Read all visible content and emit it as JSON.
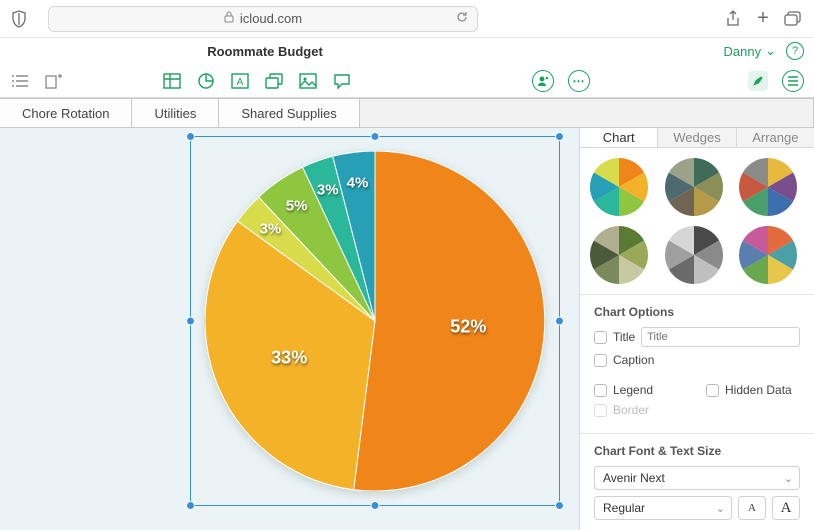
{
  "browser": {
    "url": "icloud.com"
  },
  "doc": {
    "title": "Roommate Budget",
    "user": "Danny"
  },
  "sheets": [
    "Chore Rotation",
    "Utilities",
    "Shared Supplies"
  ],
  "inspector": {
    "tabs": [
      "Chart",
      "Wedges",
      "Arrange"
    ],
    "active": 0,
    "options_title": "Chart Options",
    "title_label": "Title",
    "title_placeholder": "Title",
    "caption_label": "Caption",
    "legend_label": "Legend",
    "hidden_label": "Hidden Data",
    "border_label": "Border",
    "font_title": "Chart Font & Text Size",
    "font_family": "Avenir Next",
    "font_weight": "Regular"
  },
  "pie": {
    "type": "pie",
    "radius": 170,
    "background": "#eaf4f6",
    "slices": [
      {
        "label": "52%",
        "value": 52,
        "color": "#f08519"
      },
      {
        "label": "33%",
        "value": 33,
        "color": "#f3b228"
      },
      {
        "label": "3%",
        "value": 3,
        "color": "#d9dc4a"
      },
      {
        "label": "5%",
        "value": 5,
        "color": "#8ec63f"
      },
      {
        "label": "3%",
        "value": 3,
        "color": "#2bb89a"
      },
      {
        "label": "4%",
        "value": 4,
        "color": "#27a0b5"
      }
    ],
    "label_color": "#ffffff",
    "label_fontsize": 18
  },
  "style_minis": [
    [
      "#f08519",
      "#f3b228",
      "#8ec63f",
      "#2bb89a",
      "#27a0b5",
      "#d9dc4a"
    ],
    [
      "#3f6b57",
      "#8a8f58",
      "#b59a4a",
      "#6f6552",
      "#4e6a6f",
      "#9aa28a"
    ],
    [
      "#e7b93c",
      "#7a4e8e",
      "#3d6fae",
      "#4aa06b",
      "#c65a3e",
      "#8a8a8a"
    ],
    [
      "#5a7a35",
      "#9aa85a",
      "#c7c9a0",
      "#7a8a5a",
      "#4a5a3a",
      "#b0b090"
    ],
    [
      "#4a4a4a",
      "#8a8a8a",
      "#bfbfbf",
      "#6a6a6a",
      "#9f9f9f",
      "#d6d6d6"
    ],
    [
      "#e36a3d",
      "#4aa0a6",
      "#e7c74a",
      "#6aa84f",
      "#5a7fae",
      "#c75a9a"
    ]
  ]
}
